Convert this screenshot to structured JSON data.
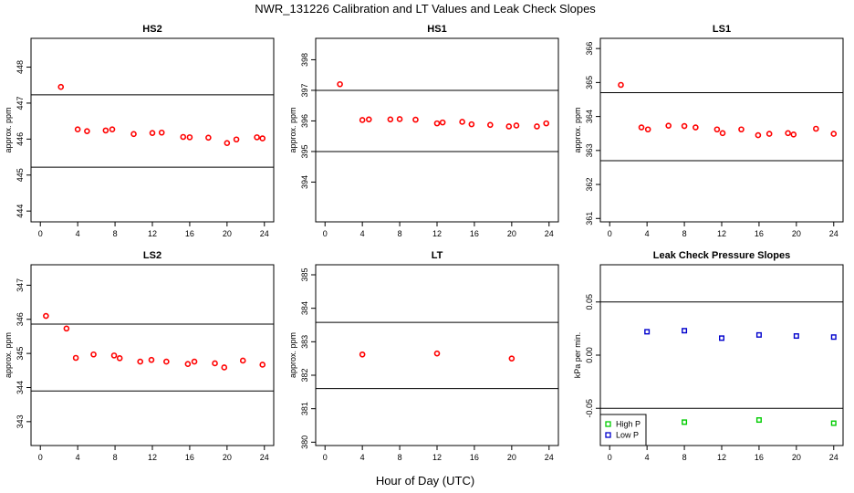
{
  "figure": {
    "title": "NWR_131226  Calibration and LT Values and Leak Check Slopes",
    "xlabel": "Hour of Day (UTC)"
  },
  "chart_data": [
    {
      "type": "scatter",
      "title": "HS2",
      "ylabel": "approx. ppm",
      "xlim": [
        -1,
        25
      ],
      "ylim": [
        443.7,
        448.8
      ],
      "xticks": [
        0,
        4,
        8,
        12,
        16,
        20,
        24
      ],
      "yticks": [
        444,
        445,
        446,
        447,
        448
      ],
      "hlines": [
        447.23,
        445.22
      ],
      "series": [
        {
          "color": "#ff0000",
          "x": [
            2.2,
            4,
            5,
            7,
            7.7,
            10,
            12,
            13,
            15.3,
            16,
            18,
            20,
            21,
            23.2,
            23.8
          ],
          "y": [
            447.45,
            446.27,
            446.22,
            446.24,
            446.27,
            446.14,
            446.17,
            446.18,
            446.06,
            446.05,
            446.04,
            445.89,
            445.99,
            446.05,
            446.02
          ]
        }
      ]
    },
    {
      "type": "scatter",
      "title": "HS1",
      "ylabel": "approx. ppm",
      "xlim": [
        -1,
        25
      ],
      "ylim": [
        392.7,
        398.7
      ],
      "xticks": [
        0,
        4,
        8,
        12,
        16,
        20,
        24
      ],
      "yticks": [
        394,
        395,
        396,
        397,
        398
      ],
      "hlines": [
        397.0,
        395.0
      ],
      "series": [
        {
          "color": "#ff0000",
          "x": [
            1.6,
            4,
            4.7,
            7,
            8,
            9.7,
            12,
            12.6,
            14.7,
            15.7,
            17.7,
            19.7,
            20.5,
            22.7,
            23.7
          ],
          "y": [
            397.2,
            396.03,
            396.05,
            396.05,
            396.06,
            396.04,
            395.92,
            395.95,
            395.97,
            395.89,
            395.87,
            395.82,
            395.85,
            395.82,
            395.92
          ]
        }
      ]
    },
    {
      "type": "scatter",
      "title": "LS1",
      "ylabel": "approx. ppm",
      "xlim": [
        -1,
        25
      ],
      "ylim": [
        360.9,
        366.3
      ],
      "xticks": [
        0,
        4,
        8,
        12,
        16,
        20,
        24
      ],
      "yticks": [
        361,
        362,
        363,
        364,
        365,
        366
      ],
      "hlines": [
        364.7,
        362.7
      ],
      "series": [
        {
          "color": "#ff0000",
          "x": [
            1.2,
            3.4,
            4.1,
            6.3,
            8,
            9.2,
            11.5,
            12.1,
            14.1,
            15.9,
            17.1,
            19.1,
            19.7,
            22.1,
            24
          ],
          "y": [
            364.93,
            363.68,
            363.62,
            363.73,
            363.72,
            363.68,
            363.62,
            363.51,
            363.62,
            363.45,
            363.49,
            363.51,
            363.47,
            363.64,
            363.49
          ]
        }
      ]
    },
    {
      "type": "scatter",
      "title": "LS2",
      "ylabel": "approx. ppm",
      "xlim": [
        -1,
        25
      ],
      "ylim": [
        342.3,
        347.6
      ],
      "xticks": [
        0,
        4,
        8,
        12,
        16,
        20,
        24
      ],
      "yticks": [
        343,
        344,
        345,
        346,
        347
      ],
      "hlines": [
        345.86,
        343.9
      ],
      "series": [
        {
          "color": "#ff0000",
          "x": [
            0.6,
            2.8,
            3.8,
            5.7,
            7.9,
            8.5,
            10.7,
            11.9,
            13.5,
            15.8,
            16.5,
            18.7,
            19.7,
            21.7,
            23.8
          ],
          "y": [
            346.1,
            345.73,
            344.87,
            344.97,
            344.94,
            344.86,
            344.76,
            344.81,
            344.76,
            344.69,
            344.76,
            344.71,
            344.59,
            344.79,
            344.67
          ]
        }
      ]
    },
    {
      "type": "scatter",
      "title": "LT",
      "ylabel": "approx. ppm",
      "xlim": [
        -1,
        25
      ],
      "ylim": [
        379.9,
        385.3
      ],
      "xticks": [
        0,
        4,
        8,
        12,
        16,
        20,
        24
      ],
      "yticks": [
        380,
        381,
        382,
        383,
        384,
        385
      ],
      "hlines": [
        383.58,
        381.6
      ],
      "series": [
        {
          "color": "#ff0000",
          "x": [
            4,
            12,
            20
          ],
          "y": [
            382.62,
            382.65,
            382.5
          ]
        }
      ]
    },
    {
      "type": "scatter",
      "title": "Leak Check Pressure Slopes",
      "ylabel": "kPa per min.",
      "xlim": [
        -1,
        25
      ],
      "ylim": [
        -0.085,
        0.085
      ],
      "xticks": [
        0,
        4,
        8,
        12,
        16,
        20,
        24
      ],
      "yticks": [
        -0.05,
        0.0,
        0.05
      ],
      "ytick_labels": [
        "-0.05",
        "0.00",
        "0.05"
      ],
      "hlines": [
        0.05,
        -0.05
      ],
      "legend": "bottom-left",
      "series": [
        {
          "name": "High P",
          "color": "#00cc00",
          "x": [
            8,
            16,
            24
          ],
          "y": [
            -0.063,
            -0.061,
            -0.064
          ]
        },
        {
          "name": "Low P",
          "color": "#0000cc",
          "x": [
            4,
            8,
            12,
            16,
            20,
            24
          ],
          "y": [
            0.022,
            0.023,
            0.016,
            0.019,
            0.018,
            0.017
          ]
        }
      ]
    }
  ]
}
